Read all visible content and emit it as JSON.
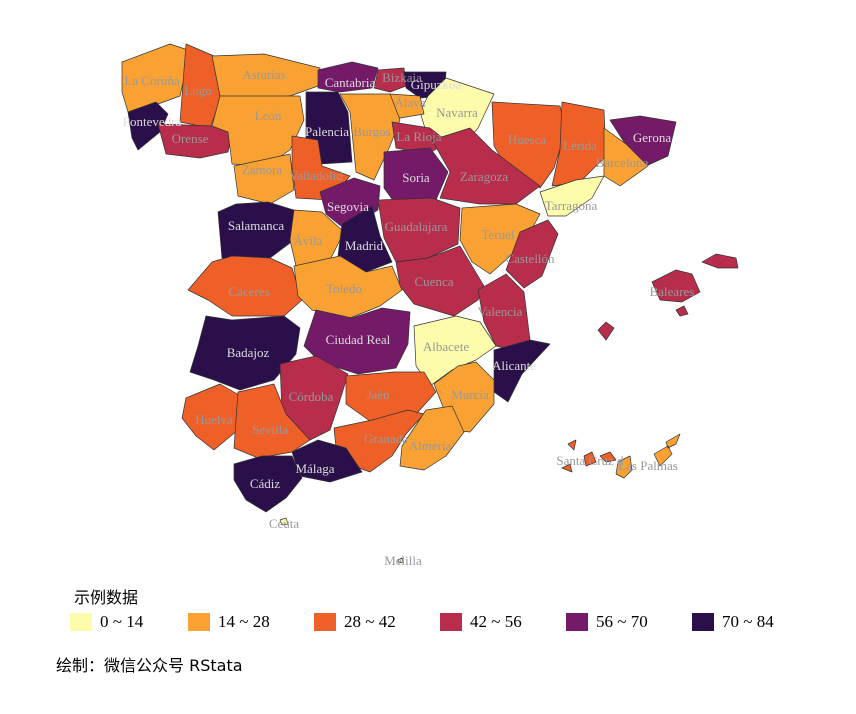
{
  "legend": {
    "title": "示例数据",
    "items": [
      {
        "label": "0 ~ 14",
        "color": "#fcfcab"
      },
      {
        "label": "14 ~ 28",
        "color": "#f9a233"
      },
      {
        "label": "28 ~ 42",
        "color": "#ef5f28"
      },
      {
        "label": "42 ~ 56",
        "color": "#b82d4b"
      },
      {
        "label": "56 ~ 70",
        "color": "#741a68"
      },
      {
        "label": "70 ~ 84",
        "color": "#2a0f4a"
      }
    ]
  },
  "caption": "绘制：微信公众号 RStata",
  "provinces": [
    {
      "name": "La Coruña",
      "class": 1
    },
    {
      "name": "Lugo",
      "class": 2
    },
    {
      "name": "Asturias",
      "class": 1
    },
    {
      "name": "Cantabria",
      "class": 4
    },
    {
      "name": "Bizkaia",
      "class": 3
    },
    {
      "name": "Gipuzkoa",
      "class": 5
    },
    {
      "name": "Navarra",
      "class": 0
    },
    {
      "name": "Álava",
      "class": 1
    },
    {
      "name": "Pontevedra",
      "class": 5
    },
    {
      "name": "Orense",
      "class": 3
    },
    {
      "name": "León",
      "class": 1
    },
    {
      "name": "Palencia",
      "class": 5
    },
    {
      "name": "Burgos",
      "class": 1
    },
    {
      "name": "La Rioja",
      "class": 3
    },
    {
      "name": "Huesca",
      "class": 2
    },
    {
      "name": "Lérida",
      "class": 2
    },
    {
      "name": "Gerona",
      "class": 4
    },
    {
      "name": "Barcelona",
      "class": 1
    },
    {
      "name": "Zamora",
      "class": 1
    },
    {
      "name": "Valladolid",
      "class": 2
    },
    {
      "name": "Soria",
      "class": 4
    },
    {
      "name": "Zaragoza",
      "class": 3
    },
    {
      "name": "Tarragona",
      "class": 0
    },
    {
      "name": "Salamanca",
      "class": 5
    },
    {
      "name": "Segovia",
      "class": 4
    },
    {
      "name": "Ávila",
      "class": 1
    },
    {
      "name": "Madrid",
      "class": 5
    },
    {
      "name": "Guadalajara",
      "class": 3
    },
    {
      "name": "Teruel",
      "class": 1
    },
    {
      "name": "Castellón",
      "class": 3
    },
    {
      "name": "Cáceres",
      "class": 2
    },
    {
      "name": "Toledo",
      "class": 1
    },
    {
      "name": "Cuenca",
      "class": 3
    },
    {
      "name": "Valencia",
      "class": 3
    },
    {
      "name": "Baleares",
      "class": 3
    },
    {
      "name": "Badajoz",
      "class": 5
    },
    {
      "name": "Ciudad Real",
      "class": 4
    },
    {
      "name": "Albacete",
      "class": 0
    },
    {
      "name": "Alicante",
      "class": 5
    },
    {
      "name": "Córdoba",
      "class": 3
    },
    {
      "name": "Jaén",
      "class": 2
    },
    {
      "name": "Murcia",
      "class": 1
    },
    {
      "name": "Huelva",
      "class": 2
    },
    {
      "name": "Sevilla",
      "class": 2
    },
    {
      "name": "Granada",
      "class": 2
    },
    {
      "name": "Almería",
      "class": 1
    },
    {
      "name": "Málaga",
      "class": 5
    },
    {
      "name": "Cádiz",
      "class": 5
    },
    {
      "name": "Santa Cruz d",
      "class": 2
    },
    {
      "name": "Las Palmas",
      "class": 1
    },
    {
      "name": "Ceuta",
      "class": 0
    },
    {
      "name": "Melilla",
      "class": 0
    }
  ]
}
